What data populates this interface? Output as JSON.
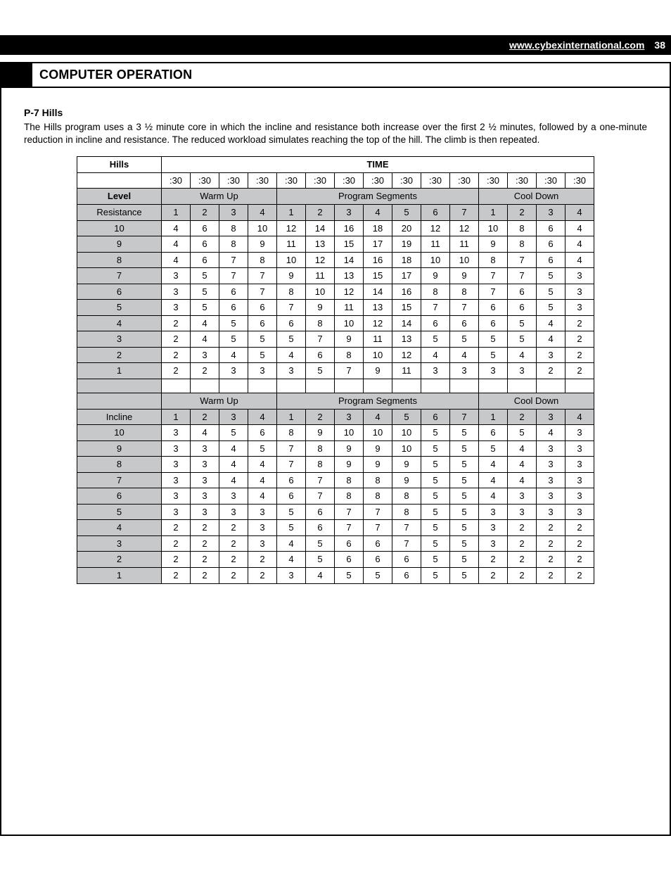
{
  "header": {
    "url": "www.cybexinternational.com",
    "page_number": "38"
  },
  "section_title": "COMPUTER OPERATION",
  "article": {
    "heading": "P-7 Hills",
    "paragraph": "The Hills program uses a 3 ½ minute core in which the incline and resistance both increase over the first 2 ½ minutes, followed by a one-minute reduction in incline and resistance. The reduced workload simulates reaching the top of the hill. The climb is then repeated."
  },
  "table": {
    "title_left": "Hills",
    "title_right": "TIME",
    "time_labels": [
      ":30",
      ":30",
      ":30",
      ":30",
      ":30",
      ":30",
      ":30",
      ":30",
      ":30",
      ":30",
      ":30",
      ":30",
      ":30",
      ":30",
      ":30"
    ],
    "level_label": "Level",
    "phase_labels": {
      "warmup": "Warm Up",
      "program": "Program Segments",
      "cooldown": "Cool Down"
    },
    "resistance": {
      "row_header": "Resistance",
      "seg_numbers": [
        "1",
        "2",
        "3",
        "4",
        "1",
        "2",
        "3",
        "4",
        "5",
        "6",
        "7",
        "1",
        "2",
        "3",
        "4"
      ],
      "levels": [
        "10",
        "9",
        "8",
        "7",
        "6",
        "5",
        "4",
        "3",
        "2",
        "1"
      ],
      "rows": [
        [
          "4",
          "6",
          "8",
          "10",
          "12",
          "14",
          "16",
          "18",
          "20",
          "12",
          "12",
          "10",
          "8",
          "6",
          "4"
        ],
        [
          "4",
          "6",
          "8",
          "9",
          "11",
          "13",
          "15",
          "17",
          "19",
          "11",
          "11",
          "9",
          "8",
          "6",
          "4"
        ],
        [
          "4",
          "6",
          "7",
          "8",
          "10",
          "12",
          "14",
          "16",
          "18",
          "10",
          "10",
          "8",
          "7",
          "6",
          "4"
        ],
        [
          "3",
          "5",
          "7",
          "7",
          "9",
          "11",
          "13",
          "15",
          "17",
          "9",
          "9",
          "7",
          "7",
          "5",
          "3"
        ],
        [
          "3",
          "5",
          "6",
          "7",
          "8",
          "10",
          "12",
          "14",
          "16",
          "8",
          "8",
          "7",
          "6",
          "5",
          "3"
        ],
        [
          "3",
          "5",
          "6",
          "6",
          "7",
          "9",
          "11",
          "13",
          "15",
          "7",
          "7",
          "6",
          "6",
          "5",
          "3"
        ],
        [
          "2",
          "4",
          "5",
          "6",
          "6",
          "8",
          "10",
          "12",
          "14",
          "6",
          "6",
          "6",
          "5",
          "4",
          "2"
        ],
        [
          "2",
          "4",
          "5",
          "5",
          "5",
          "7",
          "9",
          "11",
          "13",
          "5",
          "5",
          "5",
          "5",
          "4",
          "2"
        ],
        [
          "2",
          "3",
          "4",
          "5",
          "4",
          "6",
          "8",
          "10",
          "12",
          "4",
          "4",
          "5",
          "4",
          "3",
          "2"
        ],
        [
          "2",
          "2",
          "3",
          "3",
          "3",
          "5",
          "7",
          "9",
          "11",
          "3",
          "3",
          "3",
          "3",
          "2",
          "2"
        ]
      ]
    },
    "incline": {
      "row_header": "Incline",
      "seg_numbers": [
        "1",
        "2",
        "3",
        "4",
        "1",
        "2",
        "3",
        "4",
        "5",
        "6",
        "7",
        "1",
        "2",
        "3",
        "4"
      ],
      "levels": [
        "10",
        "9",
        "8",
        "7",
        "6",
        "5",
        "4",
        "3",
        "2",
        "1"
      ],
      "rows": [
        [
          "3",
          "4",
          "5",
          "6",
          "8",
          "9",
          "10",
          "10",
          "10",
          "5",
          "5",
          "6",
          "5",
          "4",
          "3"
        ],
        [
          "3",
          "3",
          "4",
          "5",
          "7",
          "8",
          "9",
          "9",
          "10",
          "5",
          "5",
          "5",
          "4",
          "3",
          "3"
        ],
        [
          "3",
          "3",
          "4",
          "4",
          "7",
          "8",
          "9",
          "9",
          "9",
          "5",
          "5",
          "4",
          "4",
          "3",
          "3"
        ],
        [
          "3",
          "3",
          "4",
          "4",
          "6",
          "7",
          "8",
          "8",
          "9",
          "5",
          "5",
          "4",
          "4",
          "3",
          "3"
        ],
        [
          "3",
          "3",
          "3",
          "4",
          "6",
          "7",
          "8",
          "8",
          "8",
          "5",
          "5",
          "4",
          "3",
          "3",
          "3"
        ],
        [
          "3",
          "3",
          "3",
          "3",
          "5",
          "6",
          "7",
          "7",
          "8",
          "5",
          "5",
          "3",
          "3",
          "3",
          "3"
        ],
        [
          "2",
          "2",
          "2",
          "3",
          "5",
          "6",
          "7",
          "7",
          "7",
          "5",
          "5",
          "3",
          "2",
          "2",
          "2"
        ],
        [
          "2",
          "2",
          "2",
          "3",
          "4",
          "5",
          "6",
          "6",
          "7",
          "5",
          "5",
          "3",
          "2",
          "2",
          "2"
        ],
        [
          "2",
          "2",
          "2",
          "2",
          "4",
          "5",
          "6",
          "6",
          "6",
          "5",
          "5",
          "2",
          "2",
          "2",
          "2"
        ],
        [
          "2",
          "2",
          "2",
          "2",
          "3",
          "4",
          "5",
          "5",
          "6",
          "5",
          "5",
          "2",
          "2",
          "2",
          "2"
        ]
      ]
    },
    "colors": {
      "shade": "#c7c8c9",
      "border": "#000000",
      "background": "#ffffff"
    }
  }
}
